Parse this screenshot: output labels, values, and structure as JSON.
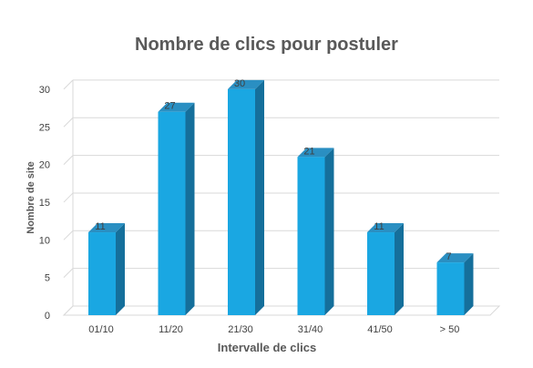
{
  "chart_data": {
    "type": "bar",
    "title": "Nombre de clics pour postuler",
    "xlabel": "Intervalle de clics",
    "ylabel": "Nombre de site",
    "categories": [
      "01/10",
      "11/20",
      "21/30",
      "31/40",
      "41/50",
      "> 50"
    ],
    "values": [
      11,
      27,
      30,
      21,
      11,
      7
    ],
    "data_labels": [
      "11",
      "27",
      "30",
      "21",
      "11",
      "7"
    ],
    "ylim": [
      0,
      30
    ],
    "yticks": [
      "0",
      "5",
      "10",
      "15",
      "20",
      "25",
      "30"
    ],
    "grid": true,
    "legend": "none",
    "style": "3d-column",
    "colors": {
      "bar_front": "#1aa7e2",
      "bar_side": "#156f9b",
      "bar_top": "#2a8fc2",
      "grid": "#d9d9d9",
      "text": "#404040",
      "title": "#595959"
    }
  }
}
